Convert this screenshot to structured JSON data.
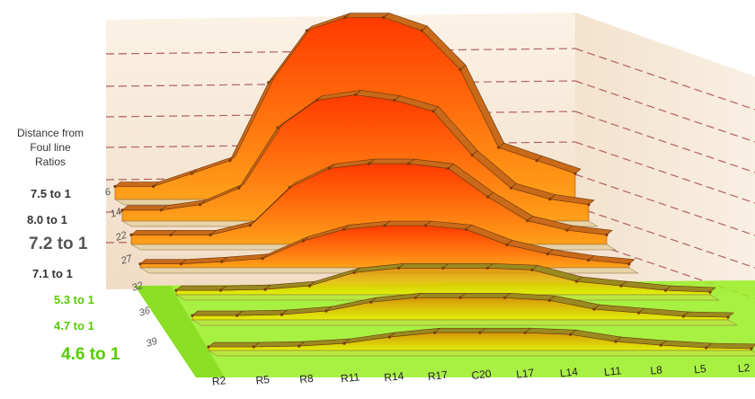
{
  "chart_data": {
    "type": "area",
    "title": "",
    "ylabel_lines": [
      "Distance from",
      "Foul line",
      "Ratios"
    ],
    "categories": [
      "R2",
      "R5",
      "R8",
      "R11",
      "R14",
      "R17",
      "C20",
      "L17",
      "L14",
      "L11",
      "L8",
      "L5",
      "L2"
    ],
    "rows": [
      {
        "distance": "6",
        "ratio": "7.5 to 1",
        "zone": "warm"
      },
      {
        "distance": "14",
        "ratio": "8.0 to 1",
        "zone": "warm"
      },
      {
        "distance": "22",
        "ratio": "7.2 to 1",
        "zone": "warm"
      },
      {
        "distance": "27",
        "ratio": "7.1 to 1",
        "zone": "warm"
      },
      {
        "distance": "32",
        "ratio": "5.3 to 1",
        "zone": "green"
      },
      {
        "distance": "36",
        "ratio": "4.7 to 1",
        "zone": "green"
      },
      {
        "distance": "39",
        "ratio": "4.6 to 1",
        "zone": "green"
      }
    ],
    "series": [
      {
        "values": [
          1,
          1,
          2,
          3,
          9,
          13,
          14,
          14,
          13,
          10,
          4,
          3,
          2
        ]
      },
      {
        "values": [
          1,
          1,
          1.5,
          3,
          8.5,
          11,
          11.5,
          11,
          10,
          6,
          3,
          2,
          1.5
        ]
      },
      {
        "values": [
          1,
          1,
          1,
          2,
          6,
          8,
          8.5,
          8.5,
          8,
          5,
          2.5,
          1.5,
          1
        ]
      },
      {
        "values": [
          0.5,
          0.5,
          0.8,
          1.2,
          3.5,
          5,
          5.5,
          5.5,
          5,
          3,
          1.8,
          1,
          0.5
        ]
      },
      {
        "values": [
          0.5,
          0.5,
          0.6,
          1,
          2.5,
          3,
          3,
          3,
          2.8,
          1.5,
          1,
          0.5,
          0.3
        ]
      },
      {
        "values": [
          0.5,
          0.5,
          0.6,
          1,
          2,
          2.5,
          2.5,
          2.5,
          2.2,
          1.2,
          0.8,
          0.4,
          0.3
        ]
      },
      {
        "values": [
          0.4,
          0.4,
          0.5,
          0.8,
          1.5,
          2,
          2,
          2,
          1.8,
          1,
          0.6,
          0.3,
          0.2
        ]
      }
    ],
    "grid": true,
    "colors": {
      "warm_top": "#ff3a00",
      "warm_bottom": "#ffa11a",
      "green_top": "#e08a00",
      "green_bottom": "#e8f000",
      "floor_green": "#99ee22",
      "wall": "#f7e8d6",
      "grid_line": "#b06060",
      "label_green": "#55cc00"
    }
  }
}
